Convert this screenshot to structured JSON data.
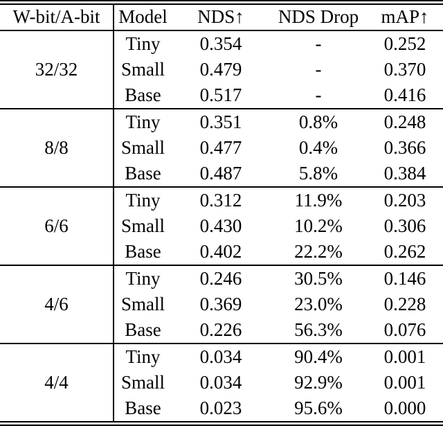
{
  "page": {
    "background_color": "#ffffff",
    "text_color": "#000000",
    "rule_color": "#000000"
  },
  "table": {
    "columns": [
      {
        "key": "bits",
        "label": "W-bit/A-bit"
      },
      {
        "key": "model",
        "label": "Model"
      },
      {
        "key": "nds",
        "label": "NDS↑"
      },
      {
        "key": "drop",
        "label": "NDS Drop"
      },
      {
        "key": "map",
        "label": "mAP↑"
      }
    ],
    "groups": [
      {
        "bits": "32/32",
        "rows": [
          {
            "model": "Tiny",
            "nds": "0.354",
            "drop": "-",
            "map": "0.252"
          },
          {
            "model": "Small",
            "nds": "0.479",
            "drop": "-",
            "map": "0.370"
          },
          {
            "model": "Base",
            "nds": "0.517",
            "drop": "-",
            "map": "0.416"
          }
        ]
      },
      {
        "bits": "8/8",
        "rows": [
          {
            "model": "Tiny",
            "nds": "0.351",
            "drop": "0.8%",
            "map": "0.248"
          },
          {
            "model": "Small",
            "nds": "0.477",
            "drop": "0.4%",
            "map": "0.366"
          },
          {
            "model": "Base",
            "nds": "0.487",
            "drop": "5.8%",
            "map": "0.384"
          }
        ]
      },
      {
        "bits": "6/6",
        "rows": [
          {
            "model": "Tiny",
            "nds": "0.312",
            "drop": "11.9%",
            "map": "0.203"
          },
          {
            "model": "Small",
            "nds": "0.430",
            "drop": "10.2%",
            "map": "0.306"
          },
          {
            "model": "Base",
            "nds": "0.402",
            "drop": "22.2%",
            "map": "0.262"
          }
        ]
      },
      {
        "bits": "4/6",
        "rows": [
          {
            "model": "Tiny",
            "nds": "0.246",
            "drop": "30.5%",
            "map": "0.146"
          },
          {
            "model": "Small",
            "nds": "0.369",
            "drop": "23.0%",
            "map": "0.228"
          },
          {
            "model": "Base",
            "nds": "0.226",
            "drop": "56.3%",
            "map": "0.076"
          }
        ]
      },
      {
        "bits": "4/4",
        "rows": [
          {
            "model": "Tiny",
            "nds": "0.034",
            "drop": "90.4%",
            "map": "0.001"
          },
          {
            "model": "Small",
            "nds": "0.034",
            "drop": "92.9%",
            "map": "0.001"
          },
          {
            "model": "Base",
            "nds": "0.023",
            "drop": "95.6%",
            "map": "0.000"
          }
        ]
      }
    ]
  }
}
